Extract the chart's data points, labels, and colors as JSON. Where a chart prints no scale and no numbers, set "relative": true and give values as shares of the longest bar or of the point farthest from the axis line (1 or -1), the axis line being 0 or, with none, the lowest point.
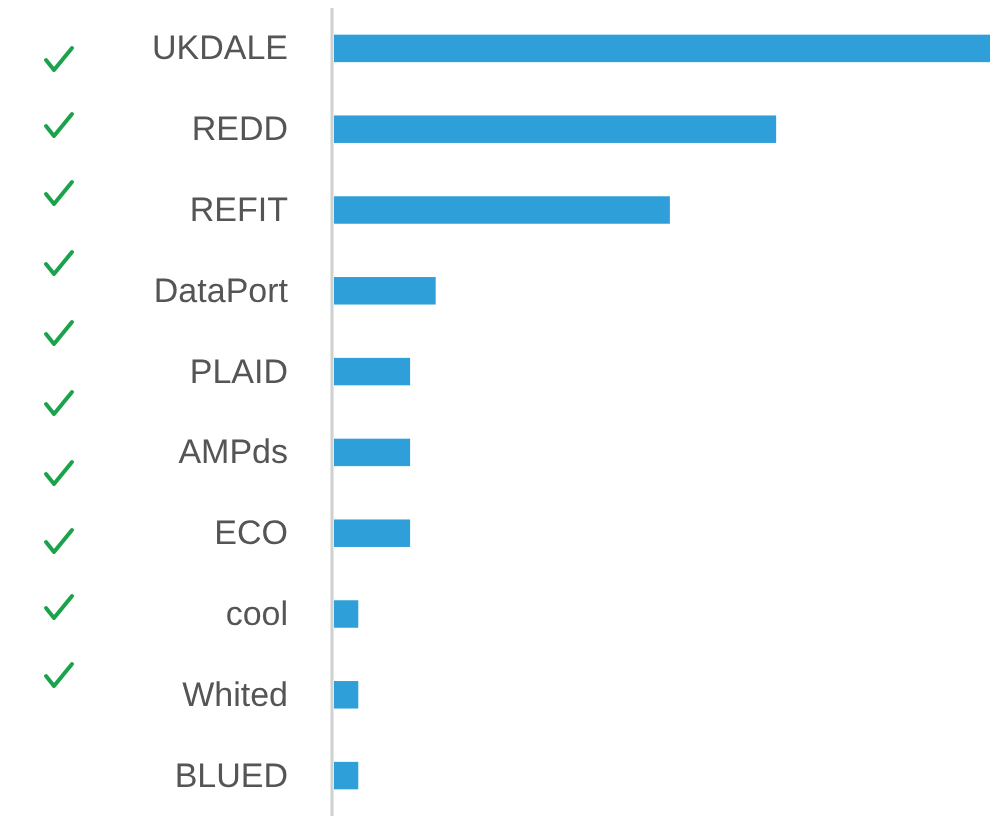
{
  "chart_data": {
    "type": "bar",
    "orientation": "horizontal",
    "relative": true,
    "categories": [
      "UKDALE",
      "REDD",
      "REFIT",
      "DataPort",
      "PLAID",
      "AMPds",
      "ECO",
      "cool",
      "Whited",
      "BLUED"
    ],
    "values": [
      1,
      0.674,
      0.512,
      0.155,
      0.116,
      0.116,
      0.116,
      0.037,
      0.037,
      0.037
    ],
    "color": "#2e9fd8"
  }
}
